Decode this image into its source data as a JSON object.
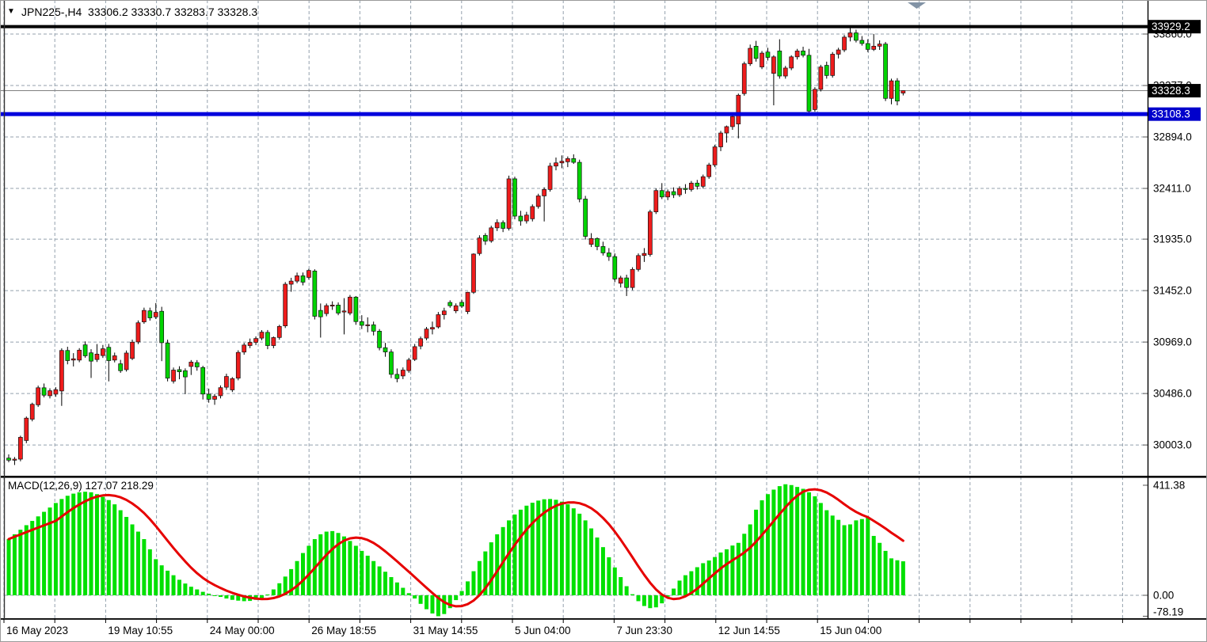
{
  "header": {
    "title_text": "JPN225-,H4  33306.2 33330.7 33283.7 33328.3",
    "symbol": "JPN225-",
    "timeframe": "H4",
    "dropdown_icon": "▼"
  },
  "price_axis": {
    "ticks": [
      "33860.0",
      "33377.0",
      "32894.0",
      "32411.0",
      "31935.0",
      "31452.0",
      "30969.0",
      "30486.0",
      "30003.0"
    ],
    "badges": [
      {
        "text": "33929.2",
        "value": 33929.2,
        "bg": "#000000",
        "fg": "#ffffff"
      },
      {
        "text": "33328.3",
        "value": 33328.3,
        "bg": "#000000",
        "fg": "#ffffff"
      },
      {
        "text": "33108.3",
        "value": 33108.3,
        "bg": "#0000cc",
        "fg": "#ffffff"
      }
    ]
  },
  "x_axis": {
    "labels": [
      "16 May 2023",
      "19 May 10:55",
      "24 May 00:00",
      "26 May 18:55",
      "31 May 14:55",
      "5 Jun 04:00",
      "7 Jun 23:30",
      "12 Jun 14:55",
      "15 Jun 04:00"
    ]
  },
  "macd_panel": {
    "label_text": "MACD(12,26,9) 127.07 218.29",
    "indicator": "MACD(12,26,9)",
    "macd_value": "127.07",
    "signal_value": "218.29",
    "ticks": [
      {
        "text": "411.38",
        "value": 411.38
      },
      {
        "text": "0.00",
        "value": 0.0
      },
      {
        "text": "-78.19",
        "value": -78.19
      }
    ]
  },
  "marker": {
    "shape": "triangle-down",
    "color": "#8293a5"
  },
  "chart_data": {
    "type": "candlestick",
    "symbol": "JPN225-",
    "timeframe": "H4",
    "title": "JPN225-,H4",
    "quote": {
      "open": 33306.2,
      "high": 33330.7,
      "low": 33283.7,
      "close": 33328.3
    },
    "legend_position": "none",
    "grid": "dashed",
    "main": {
      "ylabel": "price",
      "ylim": [
        29700,
        34050
      ],
      "y_ticks": [
        33860.0,
        33377.0,
        32894.0,
        32411.0,
        31935.0,
        31452.0,
        30969.0,
        30486.0,
        30003.0
      ],
      "lines": [
        {
          "name": "high-line",
          "price": 33929.2,
          "color": "#000000",
          "width": 4
        },
        {
          "name": "current-price-line",
          "price": 33328.3,
          "color": "#808080",
          "width": 1
        },
        {
          "name": "support-line",
          "price": 33108.3,
          "color": "#0000dd",
          "width": 5
        }
      ],
      "candles": [
        [
          29880,
          29915,
          29840,
          29860
        ],
        [
          29860,
          29890,
          29815,
          29870
        ],
        [
          29870,
          30090,
          29850,
          30075
        ],
        [
          30045,
          30270,
          30020,
          30255
        ],
        [
          30245,
          30400,
          30225,
          30385
        ],
        [
          30380,
          30560,
          30360,
          30540
        ],
        [
          30540,
          30580,
          30450,
          30470
        ],
        [
          30465,
          30535,
          30440,
          30512
        ],
        [
          30480,
          30545,
          30455,
          30522
        ],
        [
          30510,
          30910,
          30370,
          30890
        ],
        [
          30890,
          30925,
          30760,
          30795
        ],
        [
          30800,
          30865,
          30740,
          30812
        ],
        [
          30800,
          30912,
          30780,
          30893
        ],
        [
          30943,
          30975,
          30822,
          30840
        ],
        [
          30868,
          30902,
          30632,
          30790
        ],
        [
          30805,
          30950,
          30782,
          30856
        ],
        [
          30842,
          30942,
          30820,
          30906
        ],
        [
          30920,
          30952,
          30600,
          30795
        ],
        [
          30800,
          30870,
          30778,
          30840
        ],
        [
          30765,
          30802,
          30680,
          30700
        ],
        [
          30710,
          30890,
          30692,
          30866
        ],
        [
          30815,
          30992,
          30800,
          30968
        ],
        [
          30970,
          31172,
          30950,
          31150
        ],
        [
          31158,
          31292,
          31140,
          31266
        ],
        [
          31262,
          31292,
          31170,
          31196
        ],
        [
          31205,
          31335,
          31185,
          31248
        ],
        [
          31258,
          31300,
          30790,
          30963
        ],
        [
          30960,
          30992,
          30600,
          30630
        ],
        [
          30602,
          30730,
          30580,
          30706
        ],
        [
          30710,
          30742,
          30620,
          30690
        ],
        [
          30700,
          30722,
          30480,
          30642
        ],
        [
          30740,
          30800,
          30660,
          30781
        ],
        [
          30776,
          30800,
          30700,
          30736
        ],
        [
          30730,
          30746,
          30430,
          30481
        ],
        [
          30480,
          30532,
          30400,
          30432
        ],
        [
          30432,
          30482,
          30380,
          30460
        ],
        [
          30465,
          30562,
          30440,
          30541
        ],
        [
          30545,
          30672,
          30520,
          30646
        ],
        [
          30520,
          30640,
          30500,
          30626
        ],
        [
          30630,
          30892,
          30610,
          30872
        ],
        [
          30875,
          30962,
          30850,
          30941
        ],
        [
          30936,
          31002,
          30912,
          30966
        ],
        [
          30966,
          31022,
          30941,
          31002
        ],
        [
          31006,
          31081,
          30986,
          31062
        ],
        [
          31060,
          31082,
          30902,
          30936
        ],
        [
          30936,
          31021,
          30911,
          31011
        ],
        [
          31012,
          31131,
          30991,
          31116
        ],
        [
          31121,
          31532,
          31101,
          31512
        ],
        [
          31512,
          31572,
          31441,
          31541
        ],
        [
          31541,
          31621,
          31521,
          31591
        ],
        [
          31591,
          31622,
          31501,
          31531
        ],
        [
          31576,
          31656,
          31556,
          31641
        ],
        [
          31636,
          31652,
          31181,
          31211
        ],
        [
          31266,
          31331,
          31011,
          31206
        ],
        [
          31236,
          31331,
          31211,
          31311
        ],
        [
          31311,
          31351,
          31271,
          31316
        ],
        [
          31316,
          31341,
          31221,
          31241
        ],
        [
          31251,
          31381,
          31041,
          31261
        ],
        [
          31241,
          31411,
          31221,
          31391
        ],
        [
          31391,
          31401,
          31131,
          31161
        ],
        [
          31161,
          31221,
          31091,
          31126
        ],
        [
          31126,
          31201,
          31061,
          31131
        ],
        [
          31131,
          31161,
          31031,
          31071
        ],
        [
          31071,
          31091,
          30891,
          30916
        ],
        [
          30916,
          30961,
          30831,
          30876
        ],
        [
          30876,
          30901,
          30631,
          30666
        ],
        [
          30666,
          30721,
          30591,
          30626
        ],
        [
          30651,
          30731,
          30621,
          30706
        ],
        [
          30701,
          30821,
          30681,
          30801
        ],
        [
          30806,
          30951,
          30791,
          30926
        ],
        [
          30931,
          31021,
          30901,
          31001
        ],
        [
          31006,
          31111,
          30986,
          31091
        ],
        [
          31091,
          31161,
          31041,
          31106
        ],
        [
          31111,
          31251,
          31096,
          31226
        ],
        [
          31226,
          31291,
          31181,
          31261
        ],
        [
          31341,
          31361,
          31291,
          31310
        ],
        [
          31262,
          31332,
          31240,
          31310
        ],
        [
          31342,
          31365,
          31290,
          31306
        ],
        [
          31255,
          31440,
          31232,
          31436
        ],
        [
          31436,
          31802,
          31421,
          31795
        ],
        [
          31800,
          31971,
          31781,
          31946
        ],
        [
          31970,
          31991,
          31881,
          31916
        ],
        [
          31918,
          32061,
          31901,
          32041
        ],
        [
          32041,
          32121,
          32011,
          32091
        ],
        [
          32091,
          32111,
          32001,
          32036
        ],
        [
          32036,
          32531,
          32016,
          32501
        ],
        [
          32501,
          32521,
          32121,
          32151
        ],
        [
          32151,
          32201,
          32061,
          32106
        ],
        [
          32106,
          32191,
          32081,
          32161
        ],
        [
          32126,
          32261,
          32101,
          32241
        ],
        [
          32241,
          32361,
          32221,
          32341
        ],
        [
          32341,
          32421,
          32101,
          32401
        ],
        [
          32401,
          32651,
          32381,
          32621
        ],
        [
          32621,
          32701,
          32581,
          32651
        ],
        [
          32651,
          32721,
          32601,
          32666
        ],
        [
          32661,
          32711,
          32611,
          32691
        ],
        [
          32691,
          32731,
          32641,
          32656
        ],
        [
          32656,
          32681,
          32281,
          32311
        ],
        [
          32311,
          32341,
          31931,
          31961
        ],
        [
          31886,
          31991,
          31861,
          31941
        ],
        [
          31941,
          31951,
          31831,
          31866
        ],
        [
          31866,
          31911,
          31781,
          31806
        ],
        [
          31806,
          31851,
          31731,
          31771
        ],
        [
          31771,
          31801,
          31531,
          31561
        ],
        [
          31521,
          31591,
          31481,
          31571
        ],
        [
          31571,
          31601,
          31401,
          31481
        ],
        [
          31481,
          31671,
          31456,
          31651
        ],
        [
          31651,
          31801,
          31631,
          31781
        ],
        [
          31781,
          31851,
          31721,
          31801
        ],
        [
          31791,
          32211,
          31771,
          32191
        ],
        [
          32191,
          32411,
          32171,
          32391
        ],
        [
          32391,
          32461,
          32311,
          32331
        ],
        [
          32331,
          32401,
          32301,
          32381
        ],
        [
          32381,
          32421,
          32321,
          32351
        ],
        [
          32351,
          32431,
          32331,
          32411
        ],
        [
          32411,
          32451,
          32361,
          32401
        ],
        [
          32401,
          32481,
          32381,
          32461
        ],
        [
          32461,
          32491,
          32401,
          32431
        ],
        [
          32431,
          32541,
          32411,
          32521
        ],
        [
          32521,
          32651,
          32501,
          32631
        ],
        [
          32631,
          32821,
          32611,
          32801
        ],
        [
          32801,
          32951,
          32761,
          32931
        ],
        [
          32931,
          33001,
          32841,
          32991
        ],
        [
          32991,
          33101,
          32961,
          33086
        ],
        [
          33016,
          33301,
          32881,
          33286
        ],
        [
          33301,
          33601,
          33281,
          33581
        ],
        [
          33581,
          33761,
          33561,
          33726
        ],
        [
          33746,
          33796,
          33601,
          33631
        ],
        [
          33551,
          33701,
          33531,
          33681
        ],
        [
          33691,
          33731,
          33611,
          33641
        ],
        [
          33491,
          33661,
          33191,
          33646
        ],
        [
          33701,
          33811,
          33441,
          33466
        ],
        [
          33466,
          33561,
          33441,
          33541
        ],
        [
          33541,
          33661,
          33521,
          33646
        ],
        [
          33646,
          33721,
          33621,
          33701
        ],
        [
          33701,
          33741,
          33641,
          33661
        ],
        [
          33661,
          33721,
          33101,
          33136
        ],
        [
          33151,
          33361,
          33131,
          33341
        ],
        [
          33341,
          33571,
          33321,
          33551
        ],
        [
          33566,
          33601,
          33441,
          33471
        ],
        [
          33471,
          33691,
          33451,
          33671
        ],
        [
          33671,
          33731,
          33631,
          33711
        ],
        [
          33711,
          33851,
          33691,
          33831
        ],
        [
          33831,
          33930,
          33791,
          33871
        ],
        [
          33871,
          33901,
          33781,
          33801
        ],
        [
          33801,
          33841,
          33751,
          33771
        ],
        [
          33771,
          33811,
          33691,
          33716
        ],
        [
          33716,
          33861,
          33701,
          33746
        ],
        [
          33746,
          33801,
          33711,
          33766
        ],
        [
          33766,
          33786,
          33231,
          33256
        ],
        [
          33256,
          33441,
          33201,
          33421
        ],
        [
          33421,
          33446,
          33191,
          33231
        ],
        [
          33306.2,
          33330.7,
          33283.7,
          33328.3
        ]
      ]
    },
    "macd": {
      "params": [
        12,
        26,
        9
      ],
      "current_macd": 127.07,
      "current_signal": 218.29,
      "ylim": [
        -78.19,
        411.38
      ],
      "y_ticks": [
        411.38,
        0.0,
        -78.19
      ],
      "signal_method": "sma9",
      "histogram": [
        210,
        228,
        245,
        262,
        278,
        295,
        312,
        328,
        345,
        360,
        372,
        380,
        385,
        387,
        385,
        378,
        368,
        356,
        340,
        318,
        293,
        265,
        238,
        210,
        172,
        135,
        112,
        92,
        75,
        58,
        44,
        32,
        22,
        13,
        6,
        0,
        -6,
        -12,
        -17,
        -20,
        -22,
        -21,
        -17,
        -10,
        3,
        22,
        45,
        70,
        98,
        128,
        158,
        185,
        210,
        228,
        238,
        240,
        233,
        220,
        203,
        185,
        166,
        148,
        128,
        108,
        88,
        68,
        48,
        28,
        8,
        -12,
        -32,
        -52,
        -68,
        -78.19,
        -70,
        -48,
        -18,
        16,
        52,
        90,
        128,
        164,
        198,
        228,
        255,
        280,
        302,
        320,
        335,
        346,
        354,
        359,
        360,
        357,
        350,
        340,
        325,
        305,
        280,
        250,
        216,
        180,
        142,
        104,
        68,
        34,
        4,
        -22,
        -40,
        -48,
        -45,
        -30,
        -5,
        25,
        55,
        75,
        90,
        105,
        120,
        130,
        143,
        160,
        172,
        186,
        196,
        230,
        265,
        320,
        355,
        378,
        395,
        408,
        415,
        412,
        405,
        398,
        385,
        370,
        345,
        318,
        298,
        282,
        262,
        265,
        280,
        285,
        290,
        222,
        196,
        166,
        138,
        131,
        127.07
      ]
    },
    "colors": {
      "up_candle": "#ee1c1c",
      "down_candle": "#00d300",
      "wick": "#000000",
      "histogram": "#00e000",
      "signal_line": "#e60000",
      "grid": "#94a1ad",
      "background": "#ffffff",
      "axis_text": "#000000",
      "panel_border": "#000000"
    }
  }
}
